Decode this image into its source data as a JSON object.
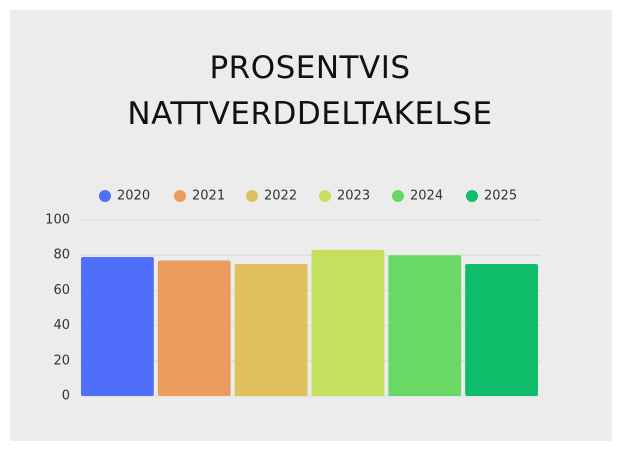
{
  "chart_data": {
    "type": "bar",
    "title": "PROSENTVIS NATTVERDDELTAKELSE",
    "series": [
      {
        "name": "2020",
        "color": "#4f6ffb",
        "values": [
          79
        ]
      },
      {
        "name": "2021",
        "color": "#e99c5e",
        "values": [
          77
        ]
      },
      {
        "name": "2022",
        "color": "#dfc05c",
        "values": [
          75
        ]
      },
      {
        "name": "2023",
        "color": "#c4e05e",
        "values": [
          83
        ]
      },
      {
        "name": "2024",
        "color": "#6ad865",
        "values": [
          80
        ]
      },
      {
        "name": "2025",
        "color": "#0dbd69",
        "values": [
          75
        ]
      }
    ],
    "ylim": [
      0,
      100
    ],
    "yticks": [
      0,
      20,
      40,
      60,
      80,
      100
    ],
    "grid": true,
    "legend": "top"
  }
}
